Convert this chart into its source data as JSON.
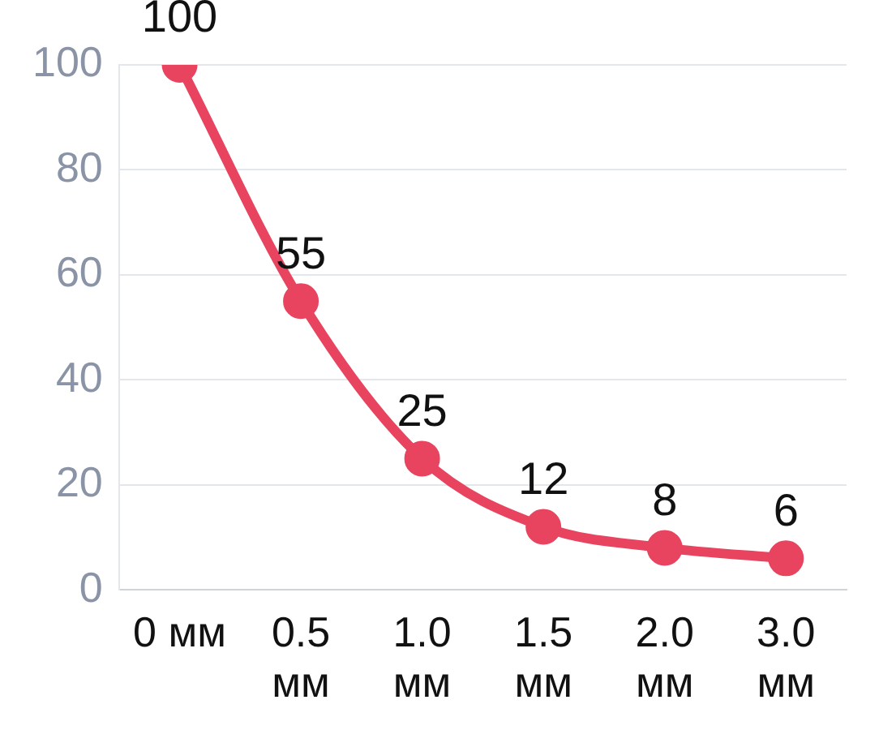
{
  "chart_data": {
    "type": "line",
    "categories": [
      "0 мм",
      "0.5 мм",
      "1.0 мм",
      "1.5 мм",
      "2.0 мм",
      "3.0 мм"
    ],
    "series": [
      {
        "color": "#e8445f",
        "values": [
          100,
          55,
          25,
          12,
          8,
          6
        ]
      }
    ],
    "ylim": [
      0,
      100
    ],
    "yticks": [
      0,
      20,
      40,
      60,
      80,
      100
    ],
    "grid": "y",
    "legend": false,
    "marker": "circle",
    "line_style": "solid",
    "data_labels": true
  }
}
